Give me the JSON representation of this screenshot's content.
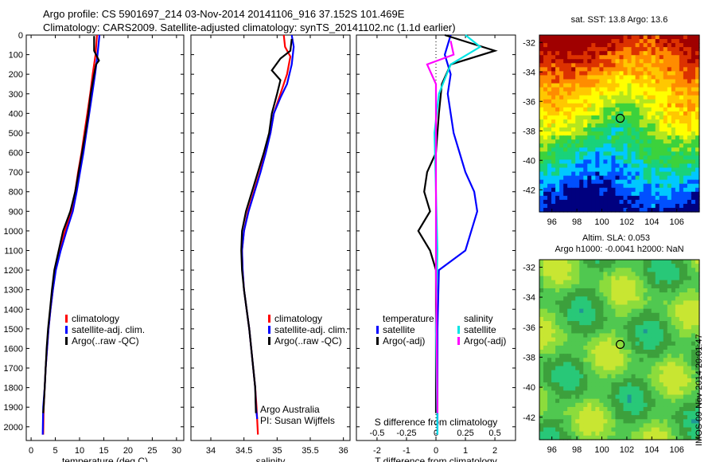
{
  "header": {
    "line1": "Argo profile: CS 5901697_214 03-Nov-2014 20141106_916 37.152S 101.469E",
    "line2": "Climatology: CARS2009. Satellite-adjusted climatology: synTS_20141102.nc (1.1d earlier)"
  },
  "chart_data": [
    {
      "type": "line",
      "id": "temperature",
      "xlabel": "temperature (deg C)",
      "ylabel": "",
      "xlim": [
        -1,
        31.5
      ],
      "ylim": [
        2070,
        0
      ],
      "xticks": [
        0,
        5,
        10,
        15,
        20,
        25,
        30
      ],
      "yticks": [
        0,
        100,
        200,
        300,
        400,
        500,
        600,
        700,
        800,
        900,
        1000,
        1100,
        1200,
        1300,
        1400,
        1500,
        1600,
        1700,
        1800,
        1900,
        2000
      ],
      "legend": {
        "placement": "lower-left",
        "entries": [
          "climatology",
          "satellite-adj. clim.",
          "Argo(..raw -QC)"
        ]
      },
      "series": [
        {
          "name": "climatology",
          "color": "#ff0000",
          "points": [
            [
              13.6,
              0
            ],
            [
              13.3,
              100
            ],
            [
              12.7,
              200
            ],
            [
              12.2,
              300
            ],
            [
              11.6,
              400
            ],
            [
              11.0,
              500
            ],
            [
              10.4,
              600
            ],
            [
              9.7,
              700
            ],
            [
              9.1,
              800
            ],
            [
              8.3,
              900
            ],
            [
              7.0,
              1000
            ],
            [
              5.9,
              1100
            ],
            [
              5.0,
              1200
            ],
            [
              4.5,
              1300
            ],
            [
              4.0,
              1400
            ],
            [
              3.6,
              1500
            ],
            [
              3.3,
              1600
            ],
            [
              3.0,
              1700
            ],
            [
              2.8,
              1800
            ],
            [
              2.6,
              1900
            ],
            [
              2.5,
              2040
            ]
          ]
        },
        {
          "name": "satellite-adj. clim.",
          "color": "#0000ff",
          "points": [
            [
              14.1,
              0
            ],
            [
              13.7,
              100
            ],
            [
              13.2,
              200
            ],
            [
              12.6,
              300
            ],
            [
              12.0,
              400
            ],
            [
              11.4,
              500
            ],
            [
              10.8,
              600
            ],
            [
              10.1,
              700
            ],
            [
              9.4,
              800
            ],
            [
              8.6,
              900
            ],
            [
              7.3,
              1000
            ],
            [
              6.1,
              1100
            ],
            [
              5.1,
              1200
            ],
            [
              4.5,
              1300
            ],
            [
              4.0,
              1400
            ],
            [
              3.6,
              1500
            ],
            [
              3.3,
              1600
            ],
            [
              3.0,
              1700
            ],
            [
              2.8,
              1800
            ],
            [
              2.5,
              1900
            ],
            [
              2.4,
              2040
            ]
          ]
        },
        {
          "name": "Argo(..raw -QC)",
          "color": "#000000",
          "points": [
            [
              13.0,
              5
            ],
            [
              13.0,
              80
            ],
            [
              14.0,
              130
            ],
            [
              13.4,
              150
            ],
            [
              13.0,
              200
            ],
            [
              12.3,
              300
            ],
            [
              11.8,
              400
            ],
            [
              11.2,
              500
            ],
            [
              10.5,
              600
            ],
            [
              9.8,
              700
            ],
            [
              9.1,
              800
            ],
            [
              8.1,
              900
            ],
            [
              6.6,
              1000
            ],
            [
              5.7,
              1100
            ],
            [
              4.8,
              1200
            ],
            [
              4.3,
              1300
            ],
            [
              3.9,
              1400
            ],
            [
              3.5,
              1500
            ],
            [
              3.2,
              1600
            ],
            [
              3.0,
              1700
            ],
            [
              2.8,
              1800
            ],
            [
              2.6,
              1900
            ],
            [
              2.5,
              1930
            ]
          ]
        }
      ]
    },
    {
      "type": "line",
      "id": "salinity",
      "xlabel": "salinity",
      "ylabel": "",
      "xlim": [
        33.7,
        36.1
      ],
      "ylim": [
        2070,
        0
      ],
      "xticks": [
        34,
        34.5,
        35,
        35.5,
        36
      ],
      "yticks": [
        0,
        100,
        200,
        300,
        400,
        500,
        600,
        700,
        800,
        900,
        1000,
        1100,
        1200,
        1300,
        1400,
        1500,
        1600,
        1700,
        1800,
        1900,
        2000
      ],
      "legend": {
        "placement": "lower-right",
        "entries": [
          "climatology",
          "satellite-adj. clim.",
          "Argo(..raw -QC)"
        ]
      },
      "annotation": {
        "line1": "Argo Australia",
        "line2": "PI: Susan Wijffels"
      },
      "series": [
        {
          "name": "climatology",
          "color": "#ff0000",
          "points": [
            [
              35.1,
              0
            ],
            [
              35.12,
              60
            ],
            [
              35.2,
              110
            ],
            [
              35.15,
              200
            ],
            [
              35.05,
              300
            ],
            [
              34.95,
              400
            ],
            [
              34.9,
              500
            ],
            [
              34.82,
              600
            ],
            [
              34.74,
              700
            ],
            [
              34.65,
              800
            ],
            [
              34.56,
              900
            ],
            [
              34.5,
              1000
            ],
            [
              34.47,
              1100
            ],
            [
              34.48,
              1200
            ],
            [
              34.5,
              1300
            ],
            [
              34.54,
              1400
            ],
            [
              34.58,
              1500
            ],
            [
              34.61,
              1600
            ],
            [
              34.64,
              1700
            ],
            [
              34.67,
              1800
            ],
            [
              34.69,
              1900
            ],
            [
              34.71,
              2040
            ]
          ]
        },
        {
          "name": "satellite-adj. clim.",
          "color": "#0000ff",
          "points": [
            [
              35.22,
              0
            ],
            [
              35.25,
              60
            ],
            [
              35.22,
              150
            ],
            [
              35.15,
              250
            ],
            [
              35.05,
              320
            ],
            [
              34.95,
              400
            ],
            [
              34.9,
              500
            ],
            [
              34.83,
              600
            ],
            [
              34.75,
              700
            ],
            [
              34.66,
              800
            ],
            [
              34.57,
              900
            ],
            [
              34.5,
              1000
            ],
            [
              34.47,
              1100
            ],
            [
              34.48,
              1200
            ],
            [
              34.5,
              1300
            ],
            [
              34.54,
              1400
            ],
            [
              34.58,
              1500
            ],
            [
              34.61,
              1600
            ],
            [
              34.64,
              1700
            ],
            [
              34.67,
              1800
            ],
            [
              34.68,
              1900
            ],
            [
              34.7,
              1960
            ]
          ]
        },
        {
          "name": "Argo(..raw -QC)",
          "color": "#000000",
          "points": [
            [
              35.22,
              20
            ],
            [
              35.2,
              80
            ],
            [
              35.05,
              120
            ],
            [
              34.92,
              180
            ],
            [
              35.05,
              230
            ],
            [
              35.0,
              300
            ],
            [
              34.92,
              400
            ],
            [
              34.88,
              500
            ],
            [
              34.8,
              600
            ],
            [
              34.71,
              700
            ],
            [
              34.62,
              800
            ],
            [
              34.53,
              900
            ],
            [
              34.47,
              1000
            ],
            [
              34.46,
              1100
            ],
            [
              34.47,
              1200
            ],
            [
              34.5,
              1300
            ],
            [
              34.54,
              1400
            ],
            [
              34.58,
              1500
            ],
            [
              34.61,
              1600
            ],
            [
              34.64,
              1700
            ],
            [
              34.67,
              1800
            ],
            [
              34.68,
              1930
            ]
          ]
        }
      ]
    },
    {
      "type": "line",
      "id": "difference",
      "xlabel": "T difference from climatology",
      "xlabel_top": "S difference from climatology",
      "xlim": [
        -2.7,
        2.7
      ],
      "ylim": [
        2070,
        0
      ],
      "xticks": [
        "-2",
        "-1",
        "0",
        "1",
        "2"
      ],
      "xtick_values": [
        -2,
        -1,
        0,
        1,
        2
      ],
      "sticks": [
        "-0.5",
        "-0.25",
        "0",
        "0.25",
        "0.5"
      ],
      "stick_values": [
        -0.5,
        -0.25,
        0,
        0.25,
        0.5
      ],
      "yticks": [
        0,
        100,
        200,
        300,
        400,
        500,
        600,
        700,
        800,
        900,
        1000,
        1100,
        1200,
        1300,
        1400,
        1500,
        1600,
        1700,
        1800,
        1900,
        2000
      ],
      "legend": {
        "placement": "lower",
        "temperature_header": "temperature",
        "salinity_header": "salinity",
        "entries": [
          "satellite",
          "Argo(-adj)",
          "satellite",
          "Argo(-adj)"
        ]
      },
      "series": [
        {
          "name": "satellite",
          "group": "temperature",
          "color": "#0000ff",
          "points": [
            [
              0.5,
              0
            ],
            [
              0.3,
              100
            ],
            [
              0.5,
              200
            ],
            [
              0.4,
              300
            ],
            [
              0.5,
              400
            ],
            [
              0.6,
              500
            ],
            [
              0.8,
              600
            ],
            [
              1.0,
              700
            ],
            [
              1.3,
              800
            ],
            [
              1.4,
              900
            ],
            [
              1.2,
              1000
            ],
            [
              1.0,
              1100
            ],
            [
              0.1,
              1200
            ],
            [
              0.05,
              1500
            ],
            [
              0.05,
              2040
            ]
          ]
        },
        {
          "name": "Argo(-adj)",
          "group": "temperature",
          "color": "#000000",
          "points": [
            [
              0.3,
              0
            ],
            [
              2.0,
              80
            ],
            [
              0.5,
              150
            ],
            [
              0.2,
              250
            ],
            [
              0.1,
              400
            ],
            [
              0,
              600
            ],
            [
              -0.3,
              700
            ],
            [
              -0.4,
              800
            ],
            [
              -0.2,
              900
            ],
            [
              -0.6,
              1000
            ],
            [
              -0.2,
              1100
            ],
            [
              0,
              1200
            ],
            [
              0,
              1930
            ]
          ]
        },
        {
          "name": "satellite",
          "group": "salinity",
          "color": "#00e5e5",
          "points": [
            [
              1.0,
              0
            ],
            [
              1.5,
              60
            ],
            [
              0.5,
              150
            ],
            [
              0.1,
              300
            ],
            [
              -0.05,
              500
            ],
            [
              0,
              800
            ],
            [
              0.05,
              1100
            ],
            [
              0,
              1500
            ],
            [
              0.05,
              2040
            ]
          ]
        },
        {
          "name": "Argo(-adj)",
          "group": "salinity",
          "color": "#ff00ff",
          "points": [
            [
              0.5,
              30
            ],
            [
              0.6,
              100
            ],
            [
              -0.3,
              150
            ],
            [
              0,
              250
            ],
            [
              0,
              400
            ],
            [
              0,
              1200
            ],
            [
              0.05,
              1930
            ]
          ]
        }
      ]
    },
    {
      "type": "heatmap",
      "id": "sst-map",
      "title": "sat. SST: 13.8  Argo: 13.6",
      "xlim": [
        95,
        107.8
      ],
      "ylim": [
        -43.5,
        -31.5
      ],
      "xticks": [
        96,
        98,
        100,
        102,
        104,
        106
      ],
      "yticks": [
        -32,
        -34,
        -36,
        -38,
        -40,
        -42
      ],
      "marker": {
        "lon": 101.47,
        "lat": -37.15
      },
      "colors": [
        "#00007f",
        "#0050ff",
        "#00c8ff",
        "#19d27a",
        "#3cd23c",
        "#b4e61e",
        "#ffff00",
        "#ffc800",
        "#ff8c00",
        "#dc3200",
        "#a00000"
      ]
    },
    {
      "type": "heatmap",
      "id": "sla-map",
      "title": "Altim. SLA: 0.053",
      "subtitle": "Argo h1000: -0.0041  h2000: NaN",
      "xlim": [
        95,
        107.8
      ],
      "ylim": [
        -43.5,
        -31.5
      ],
      "xticks": [
        96,
        98,
        100,
        102,
        104,
        106
      ],
      "yticks": [
        -32,
        -34,
        -36,
        -38,
        -40,
        -42
      ],
      "marker": {
        "lon": 101.47,
        "lat": -37.15
      },
      "colors": [
        "#1e9696",
        "#28c878",
        "#3ca03c",
        "#50c850",
        "#8cdc3c",
        "#c8e632"
      ]
    }
  ],
  "footer": {
    "stamp": "IMOS 09-Nov-2014 20:01:47"
  }
}
